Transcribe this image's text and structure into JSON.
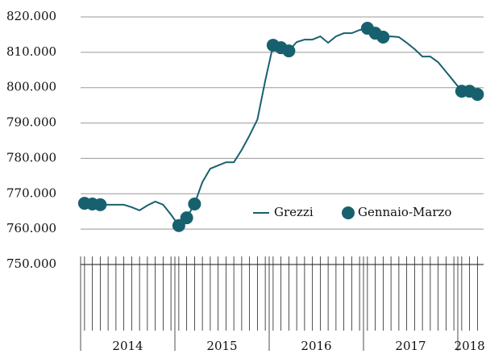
{
  "chart_data": {
    "type": "line",
    "categories": [
      null,
      null,
      null,
      null,
      null,
      null,
      null,
      null,
      null,
      null,
      null,
      null,
      null,
      null,
      null,
      null,
      null,
      null,
      null,
      null,
      null,
      null,
      null,
      null,
      null,
      null,
      null,
      null,
      null,
      null,
      null,
      null,
      null,
      null,
      null,
      null,
      null,
      null,
      null,
      null,
      null,
      null,
      null,
      null,
      null,
      null,
      null,
      null,
      null,
      null,
      null
    ],
    "x_groups": [
      {
        "label": "2014",
        "count": 12
      },
      {
        "label": "2015",
        "count": 12
      },
      {
        "label": "2016",
        "count": 12
      },
      {
        "label": "2017",
        "count": 12
      },
      {
        "label": "2018",
        "count": 3
      }
    ],
    "series": [
      {
        "name": "Grezzi",
        "color": "#17616f",
        "style": "line",
        "values": [
          767300,
          767100,
          766900,
          766900,
          766900,
          766900,
          766200,
          765300,
          766700,
          767800,
          766900,
          764100,
          761000,
          763200,
          767100,
          773300,
          777100,
          778000,
          778900,
          778900,
          782400,
          786500,
          791000,
          802000,
          812000,
          811300,
          810400,
          812900,
          813600,
          813600,
          814500,
          812700,
          814500,
          815400,
          815400,
          816300,
          816800,
          815400,
          814300,
          814500,
          814300,
          812700,
          810900,
          808800,
          808800,
          807200,
          804500,
          801800,
          799000,
          799000,
          798100
        ]
      },
      {
        "name": "Gennaio-Marzo",
        "color": "#17616f",
        "style": "marker",
        "values": [
          767300,
          767100,
          766900,
          null,
          null,
          null,
          null,
          null,
          null,
          null,
          null,
          null,
          761000,
          763200,
          767100,
          null,
          null,
          null,
          null,
          null,
          null,
          null,
          null,
          null,
          812000,
          811300,
          810400,
          null,
          null,
          null,
          null,
          null,
          null,
          null,
          null,
          null,
          816800,
          815400,
          814300,
          null,
          null,
          null,
          null,
          null,
          null,
          null,
          null,
          null,
          799000,
          799000,
          798100
        ]
      }
    ],
    "ylim": [
      750000,
      820000
    ],
    "yticks": [
      {
        "value": 750000,
        "label": "750.000"
      },
      {
        "value": 760000,
        "label": "760.000"
      },
      {
        "value": 770000,
        "label": "770.000"
      },
      {
        "value": 780000,
        "label": "780.000"
      },
      {
        "value": 790000,
        "label": "790.000"
      },
      {
        "value": 800000,
        "label": "800.000"
      },
      {
        "value": 810000,
        "label": "810.000"
      },
      {
        "value": 820000,
        "label": "820.000"
      }
    ],
    "grid": true,
    "legend": "lower right"
  }
}
